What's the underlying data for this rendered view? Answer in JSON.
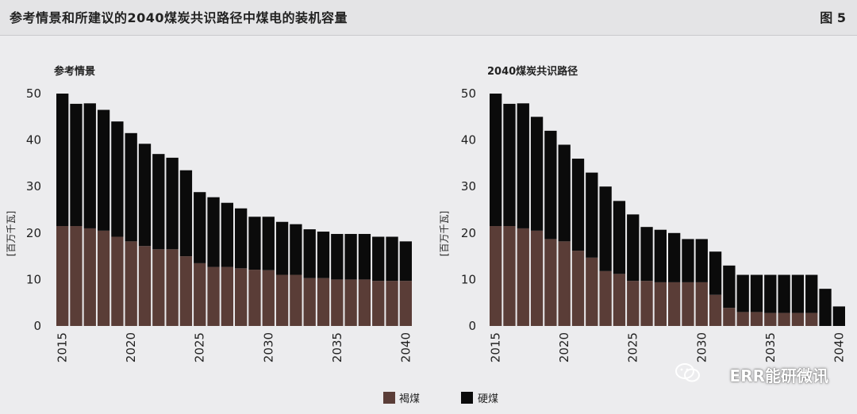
{
  "header": {
    "title": "参考情景和所建议的2040煤炭共识路径中煤电的装机容量",
    "figure_label": "图 5"
  },
  "watermark": "ERR能研微讯",
  "colors": {
    "lignite": "#5a3d37",
    "hard_coal": "#0b0b0b"
  },
  "chart_data": [
    {
      "type": "bar",
      "stacked": true,
      "title": "参考情景",
      "ylabel": "[百万千瓦]",
      "ylim": [
        0,
        50
      ],
      "yticks": [
        0,
        10,
        20,
        30,
        40,
        50
      ],
      "xticks": [
        "2015",
        "2020",
        "2025",
        "2030",
        "2035",
        "2040"
      ],
      "categories": [
        2015,
        2016,
        2017,
        2018,
        2019,
        2020,
        2021,
        2022,
        2023,
        2024,
        2025,
        2026,
        2027,
        2028,
        2029,
        2030,
        2031,
        2032,
        2033,
        2034,
        2035,
        2036,
        2037,
        2038,
        2039,
        2040
      ],
      "series": [
        {
          "name": "褐煤",
          "values": [
            21.5,
            21.5,
            21.0,
            20.5,
            19.2,
            18.2,
            17.2,
            16.5,
            16.5,
            15.0,
            13.5,
            12.7,
            12.7,
            12.4,
            12.1,
            12.0,
            11.0,
            11.0,
            10.3,
            10.3,
            10.0,
            10.0,
            10.0,
            9.7,
            9.7,
            9.7
          ]
        },
        {
          "name": "硬煤",
          "values": [
            28.5,
            26.3,
            26.9,
            26.0,
            24.8,
            23.3,
            22.0,
            20.5,
            19.7,
            18.5,
            15.3,
            15.0,
            13.8,
            12.9,
            11.4,
            11.5,
            11.4,
            10.9,
            10.5,
            10.0,
            9.8,
            9.8,
            9.8,
            9.5,
            9.5,
            8.5
          ]
        }
      ]
    },
    {
      "type": "bar",
      "stacked": true,
      "title": "2040煤炭共识路径",
      "ylabel": "[百万千瓦]",
      "ylim": [
        0,
        50
      ],
      "yticks": [
        0,
        10,
        20,
        30,
        40,
        50
      ],
      "xticks": [
        "2015",
        "2020",
        "2025",
        "2030",
        "2035",
        "2040"
      ],
      "categories": [
        2015,
        2016,
        2017,
        2018,
        2019,
        2020,
        2021,
        2022,
        2023,
        2024,
        2025,
        2026,
        2027,
        2028,
        2029,
        2030,
        2031,
        2032,
        2033,
        2034,
        2035,
        2036,
        2037,
        2038,
        2039,
        2040
      ],
      "series": [
        {
          "name": "褐煤",
          "values": [
            21.5,
            21.5,
            21.0,
            20.5,
            18.7,
            18.2,
            16.2,
            14.7,
            11.8,
            11.2,
            9.7,
            9.7,
            9.4,
            9.4,
            9.4,
            9.4,
            6.7,
            3.9,
            3.0,
            3.0,
            2.8,
            2.8,
            2.8,
            2.8,
            0,
            0
          ]
        },
        {
          "name": "硬煤",
          "values": [
            28.5,
            26.3,
            26.9,
            24.5,
            23.3,
            20.8,
            19.8,
            18.3,
            18.2,
            15.7,
            14.3,
            11.6,
            11.3,
            10.6,
            9.3,
            9.3,
            9.3,
            9.1,
            8.0,
            8.0,
            8.2,
            8.2,
            8.2,
            8.2,
            8.0,
            4.2
          ]
        }
      ]
    }
  ],
  "legend": [
    {
      "name": "褐煤",
      "color": "#5a3d37"
    },
    {
      "name": "硬煤",
      "color": "#0b0b0b"
    }
  ]
}
